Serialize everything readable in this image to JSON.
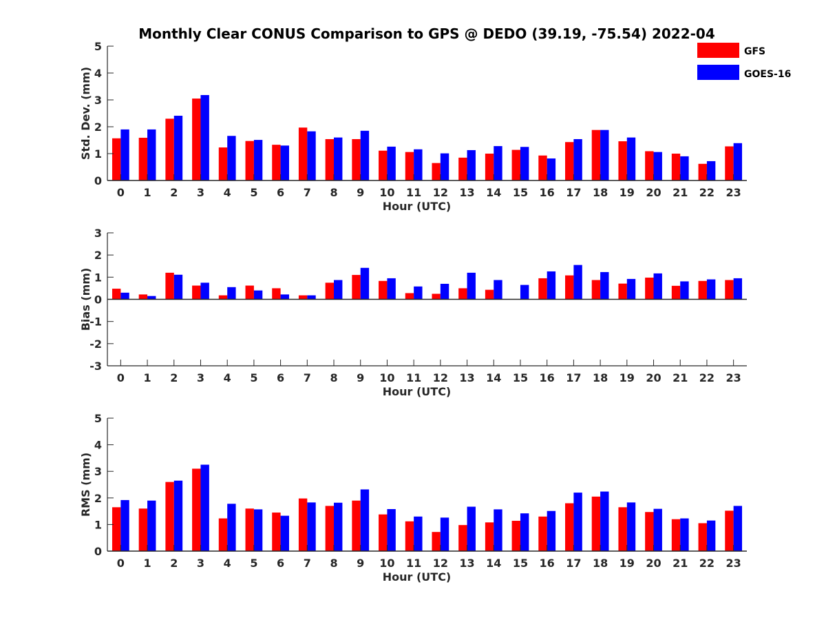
{
  "title": "Monthly Clear CONUS Comparison to GPS @ DEDO (39.19, -75.54) 2022-04",
  "legend": [
    {
      "name": "GFS",
      "color": "#ff0000"
    },
    {
      "name": "GOES-16",
      "color": "#0000ff"
    }
  ],
  "chart_data": [
    {
      "type": "bar",
      "xlabel": "Hour (UTC)",
      "ylabel": "Std. Dev. (mm)",
      "ylim": [
        0,
        5
      ],
      "yticks": [
        0,
        1,
        2,
        3,
        4,
        5
      ],
      "categories": [
        "0",
        "1",
        "2",
        "3",
        "4",
        "5",
        "6",
        "7",
        "8",
        "9",
        "10",
        "11",
        "12",
        "13",
        "14",
        "15",
        "16",
        "17",
        "18",
        "19",
        "20",
        "21",
        "22",
        "23"
      ],
      "series": [
        {
          "name": "GFS",
          "color": "#ff0000",
          "values": [
            1.57,
            1.59,
            2.3,
            3.05,
            1.23,
            1.47,
            1.33,
            1.97,
            1.54,
            1.54,
            1.11,
            1.06,
            0.65,
            0.85,
            1.0,
            1.14,
            0.93,
            1.43,
            1.88,
            1.46,
            1.09,
            1.0,
            0.62,
            1.27
          ]
        },
        {
          "name": "GOES-16",
          "color": "#0000ff",
          "values": [
            1.9,
            1.9,
            2.41,
            3.18,
            1.66,
            1.51,
            1.3,
            1.83,
            1.6,
            1.85,
            1.26,
            1.16,
            1.01,
            1.13,
            1.28,
            1.25,
            0.82,
            1.54,
            1.88,
            1.6,
            1.06,
            0.9,
            0.72,
            1.39
          ]
        }
      ]
    },
    {
      "type": "bar",
      "xlabel": "Hour (UTC)",
      "ylabel": "Bias (mm)",
      "ylim": [
        -3,
        3
      ],
      "yticks": [
        -3,
        -2,
        -1,
        0,
        1,
        2,
        3
      ],
      "categories": [
        "0",
        "1",
        "2",
        "3",
        "4",
        "5",
        "6",
        "7",
        "8",
        "9",
        "10",
        "11",
        "12",
        "13",
        "14",
        "15",
        "16",
        "17",
        "18",
        "19",
        "20",
        "21",
        "22",
        "23"
      ],
      "series": [
        {
          "name": "GFS",
          "color": "#ff0000",
          "values": [
            0.48,
            0.22,
            1.2,
            0.62,
            0.18,
            0.62,
            0.5,
            0.18,
            0.75,
            1.1,
            0.83,
            0.28,
            0.25,
            0.5,
            0.43,
            0.0,
            0.95,
            1.08,
            0.87,
            0.71,
            0.98,
            0.61,
            0.83,
            0.87
          ]
        },
        {
          "name": "GOES-16",
          "color": "#0000ff",
          "values": [
            0.3,
            0.15,
            1.11,
            0.75,
            0.55,
            0.4,
            0.22,
            0.18,
            0.87,
            1.42,
            0.95,
            0.58,
            0.7,
            1.2,
            0.87,
            0.65,
            1.26,
            1.55,
            1.23,
            0.92,
            1.17,
            0.81,
            0.9,
            0.95
          ]
        }
      ]
    },
    {
      "type": "bar",
      "xlabel": "Hour (UTC)",
      "ylabel": "RMS (mm)",
      "ylim": [
        0,
        5
      ],
      "yticks": [
        0,
        1,
        2,
        3,
        4,
        5
      ],
      "categories": [
        "0",
        "1",
        "2",
        "3",
        "4",
        "5",
        "6",
        "7",
        "8",
        "9",
        "10",
        "11",
        "12",
        "13",
        "14",
        "15",
        "16",
        "17",
        "18",
        "19",
        "20",
        "21",
        "22",
        "23"
      ],
      "series": [
        {
          "name": "GFS",
          "color": "#ff0000",
          "values": [
            1.65,
            1.6,
            2.6,
            3.1,
            1.23,
            1.6,
            1.45,
            1.98,
            1.7,
            1.9,
            1.38,
            1.12,
            0.72,
            0.98,
            1.08,
            1.14,
            1.3,
            1.8,
            2.05,
            1.65,
            1.47,
            1.2,
            1.05,
            1.52
          ]
        },
        {
          "name": "GOES-16",
          "color": "#0000ff",
          "values": [
            1.92,
            1.9,
            2.65,
            3.25,
            1.78,
            1.57,
            1.33,
            1.83,
            1.82,
            2.32,
            1.58,
            1.3,
            1.26,
            1.67,
            1.57,
            1.42,
            1.51,
            2.2,
            2.24,
            1.83,
            1.59,
            1.23,
            1.15,
            1.7
          ]
        }
      ]
    }
  ]
}
